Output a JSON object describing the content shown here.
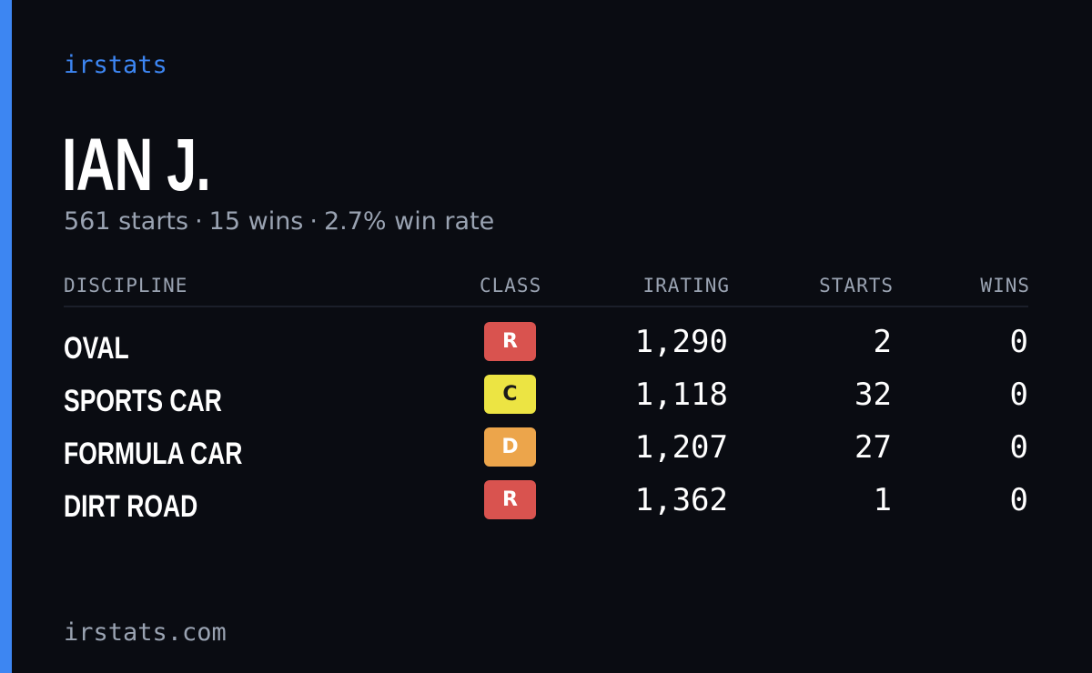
{
  "brand": "irstats",
  "driver": {
    "name": "IAN J.",
    "starts": "561 starts",
    "wins": "15 wins",
    "win_rate": "2.7% win rate",
    "separator": "·"
  },
  "table": {
    "headers": {
      "discipline": "DISCIPLINE",
      "class": "CLASS",
      "irating": "IRATING",
      "starts": "STARTS",
      "wins": "WINS"
    },
    "rows": [
      {
        "discipline": "OVAL",
        "class": "R",
        "class_color": "#d9534f",
        "class_text_color": "#ffffff",
        "irating": "1,290",
        "starts": "2",
        "wins": "0"
      },
      {
        "discipline": "SPORTS CAR",
        "class": "C",
        "class_color": "#ece443",
        "class_text_color": "#1a1a1a",
        "irating": "1,118",
        "starts": "32",
        "wins": "0"
      },
      {
        "discipline": "FORMULA CAR",
        "class": "D",
        "class_color": "#eca54b",
        "class_text_color": "#ffffff",
        "irating": "1,207",
        "starts": "27",
        "wins": "0"
      },
      {
        "discipline": "DIRT ROAD",
        "class": "R",
        "class_color": "#d9534f",
        "class_text_color": "#ffffff",
        "irating": "1,362",
        "starts": "1",
        "wins": "0"
      }
    ]
  },
  "footer": "irstats.com",
  "colors": {
    "accent": "#3d86f2",
    "background": "#0a0c12",
    "muted_text": "#9aa3b2"
  }
}
